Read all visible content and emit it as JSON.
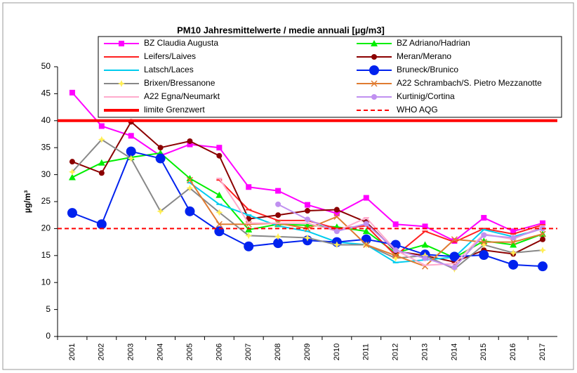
{
  "chart_data": {
    "type": "line",
    "title": "PM10 Jahresmittelwerte  / medie annuali [µg/m3]",
    "y_label": "µg/m³",
    "categories": [
      "2001",
      "2002",
      "2003",
      "2004",
      "2005",
      "2006",
      "2007",
      "2008",
      "2009",
      "2010",
      "2011",
      "2012",
      "2013",
      "2014",
      "2015",
      "2016",
      "2017"
    ],
    "ylim": [
      0,
      50
    ],
    "yticks": [
      0,
      5,
      10,
      15,
      20,
      25,
      30,
      35,
      40,
      45,
      50
    ],
    "series": [
      {
        "name": "BZ Claudia Augusta",
        "color": "#ff00ff",
        "marker": "square",
        "values": [
          45.2,
          39,
          37.2,
          33.5,
          35.6,
          35,
          27.7,
          27,
          24.4,
          22.8,
          25.7,
          20.8,
          20.4,
          17.7,
          22,
          19.5,
          21
        ]
      },
      {
        "name": "BZ Adriano/Hadrian",
        "color": "#00ee00",
        "marker": "triangle",
        "values": [
          29.5,
          32.2,
          33.2,
          34,
          29.3,
          26.2,
          19.8,
          20.8,
          20.6,
          20.3,
          19.5,
          15.5,
          17,
          14.6,
          17.7,
          17,
          19
        ]
      },
      {
        "name": "Leifers/Laives",
        "color": "#ff2020",
        "marker": "dash",
        "values": [
          null,
          null,
          null,
          null,
          null,
          29,
          23.5,
          21.5,
          21.5,
          20,
          20.5,
          15,
          19.5,
          17.5,
          20,
          19,
          20.7
        ]
      },
      {
        "name": "Meran/Merano",
        "color": "#8b0000",
        "marker": "circle",
        "values": [
          32.4,
          30.3,
          39.8,
          35,
          36.2,
          33.5,
          21.8,
          22.5,
          23.3,
          23.5,
          21.2,
          15.8,
          15,
          13.8,
          16,
          15.3,
          18
        ]
      },
      {
        "name": "Latsch/Laces",
        "color": "#00ccee",
        "marker": "dash",
        "values": [
          null,
          null,
          null,
          null,
          28.5,
          24.5,
          22.5,
          20.5,
          19.5,
          17.5,
          17,
          13.7,
          14.2,
          14.7,
          19.8,
          18.5,
          20
        ]
      },
      {
        "name": "Bruneck/Brunico",
        "color": "#0022ee",
        "marker": "bigcircle",
        "values": [
          22.9,
          20.8,
          34.3,
          33,
          23.2,
          19.5,
          16.7,
          17.3,
          17.8,
          17.5,
          18,
          17,
          15.2,
          14.8,
          15.1,
          13.3,
          13
        ]
      },
      {
        "name": "Brixen/Bressanone",
        "color": "#888888",
        "marker": "star",
        "values": [
          30.5,
          36.5,
          33,
          23.2,
          27.5,
          23,
          18.7,
          18.5,
          18.3,
          17,
          17,
          14.5,
          15,
          12.5,
          17,
          15.5,
          16
        ]
      },
      {
        "name": "A22 Schrambach/S. Pietro Mezzanotte",
        "color": "#e07b30",
        "marker": "x",
        "values": [
          null,
          null,
          null,
          null,
          29,
          20.8,
          20.8,
          21,
          20,
          22.2,
          17,
          15,
          13,
          18,
          17.5,
          17.5,
          19
        ]
      },
      {
        "name": "A22 Egna/Neumarkt",
        "color": "#ffaacc",
        "marker": "dash",
        "values": [
          null,
          null,
          null,
          null,
          null,
          29.3,
          21,
          21,
          21,
          19.5,
          22,
          16,
          13.2,
          13.5,
          19,
          18,
          20.5
        ]
      },
      {
        "name": "Kurtinig/Cortina",
        "color": "#c090f0",
        "marker": "circle",
        "values": [
          null,
          null,
          null,
          null,
          null,
          null,
          null,
          24.5,
          21.7,
          19.5,
          20.9,
          16,
          14.5,
          12.8,
          18.8,
          18.3,
          20
        ]
      },
      {
        "name": "limite Grenzwert",
        "color": "#ff0000",
        "marker": "none",
        "width": 4,
        "values": [
          40,
          40,
          40,
          40,
          40,
          40,
          40,
          40,
          40,
          40,
          40,
          40,
          40,
          40,
          40,
          40,
          40
        ]
      },
      {
        "name": "WHO AQG",
        "color": "#ff0000",
        "marker": "none",
        "dashed": true,
        "values": [
          20,
          20,
          20,
          20,
          20,
          20,
          20,
          20,
          20,
          20,
          20,
          20,
          20,
          20,
          20,
          20,
          20
        ]
      }
    ]
  }
}
